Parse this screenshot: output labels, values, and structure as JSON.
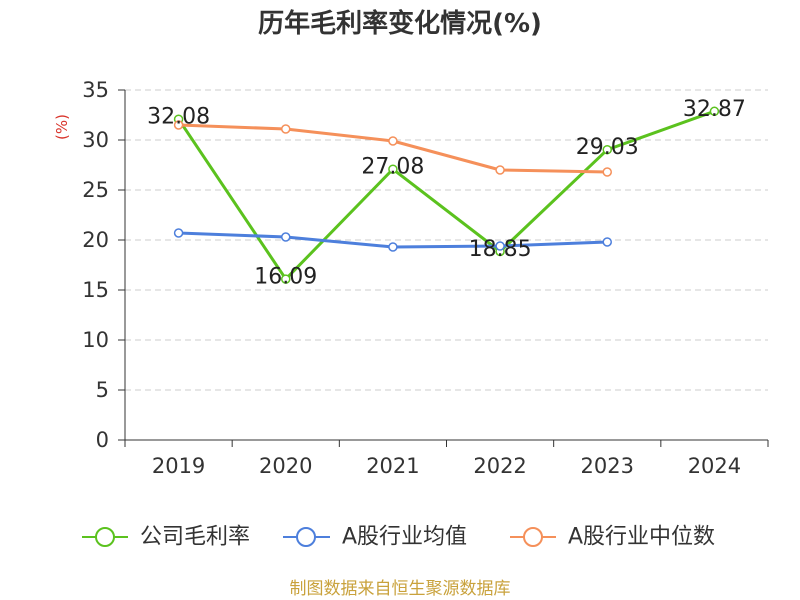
{
  "chart_data": {
    "type": "line",
    "title": "历年毛利率变化情况(%)",
    "ylabel": "(%)",
    "ylabel_color": "#d9342b",
    "categories": [
      "2019",
      "2020",
      "2021",
      "2022",
      "2023",
      "2024"
    ],
    "ylim": [
      0,
      35
    ],
    "yticks": [
      0,
      5,
      10,
      15,
      20,
      25,
      30,
      35
    ],
    "grid": true,
    "legend": "bottom",
    "series": [
      {
        "name": "公司毛利率",
        "color": "#5bc21e",
        "show_labels": true,
        "values": [
          32.08,
          16.09,
          27.08,
          18.85,
          29.03,
          32.87
        ]
      },
      {
        "name": "A股行业均值",
        "color": "#4d7fdc",
        "show_labels": false,
        "values": [
          20.7,
          20.3,
          19.3,
          19.4,
          19.8,
          null
        ]
      },
      {
        "name": "A股行业中位数",
        "color": "#f5905a",
        "show_labels": false,
        "values": [
          31.5,
          31.1,
          29.9,
          27.0,
          26.8,
          null
        ]
      }
    ]
  },
  "footer": {
    "source": "制图数据来自恒生聚源数据库",
    "color": "#c9a23c"
  }
}
